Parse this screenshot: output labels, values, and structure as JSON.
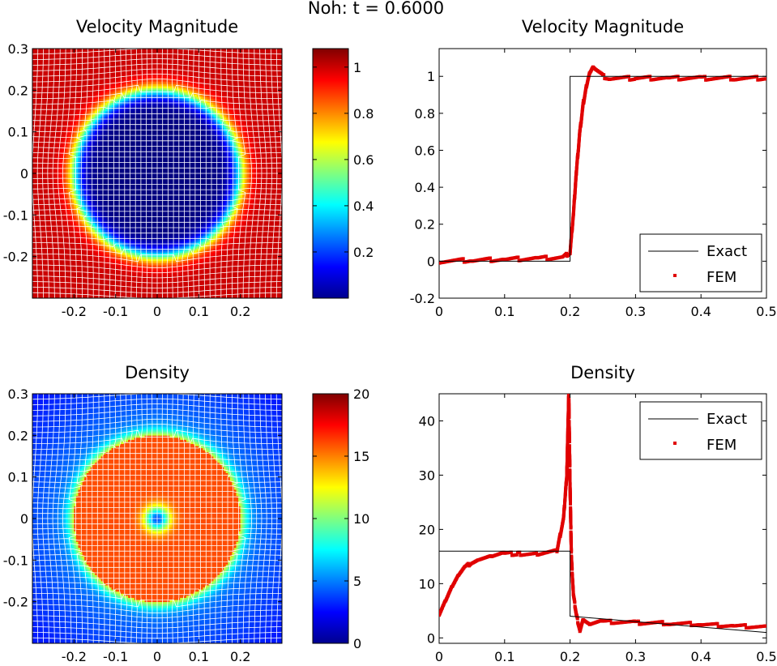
{
  "suptitle": "Noh: t = 0.6000",
  "maps": [
    {
      "title": "Velocity Magnitude",
      "xticks": [
        "-0.2",
        "-0.1",
        "0",
        "0.1",
        "0.2"
      ],
      "yticks": [
        "0.3",
        "0.2",
        "0.1",
        "0",
        "-0.1",
        "-0.2"
      ],
      "colorbar": {
        "ticks": [
          "1",
          "0.8",
          "0.6",
          "0.4",
          "0.2"
        ],
        "values": [
          1,
          0.8,
          0.6,
          0.4,
          0.2
        ],
        "range": [
          0.0,
          1.08
        ]
      },
      "field": {
        "kind": "velocity",
        "shock_radius": 0.2,
        "inside": 0.0,
        "outside": 1.0
      }
    },
    {
      "title": "Density",
      "xticks": [
        "-0.2",
        "-0.1",
        "0",
        "0.1",
        "0.2"
      ],
      "yticks": [
        "0.3",
        "0.2",
        "0.1",
        "0",
        "-0.1",
        "-0.2"
      ],
      "colorbar": {
        "ticks": [
          "20",
          "15",
          "10",
          "5",
          "0"
        ],
        "values": [
          20,
          15,
          10,
          5,
          0
        ],
        "range": [
          0,
          20
        ]
      },
      "field": {
        "kind": "density",
        "shock_radius": 0.2,
        "inside": 16,
        "center": 4,
        "outside_at_shock": 5,
        "outside_at_edge": 3
      }
    }
  ],
  "chart_data": [
    {
      "type": "line",
      "title": "Velocity Magnitude",
      "xlabel": "",
      "ylabel": "",
      "xlim": [
        0,
        0.5
      ],
      "ylim": [
        -0.2,
        1.15
      ],
      "xticks": [
        "0",
        "0.1",
        "0.2",
        "0.3",
        "0.4",
        "0.5"
      ],
      "yticks": [
        "1",
        "0.8",
        "0.6",
        "0.4",
        "0.2",
        "0",
        "-0.2"
      ],
      "legend_position": "bottom-right",
      "series": [
        {
          "name": "Exact",
          "color": "#000000",
          "style": "line",
          "x": [
            0,
            0.2,
            0.2,
            0.5
          ],
          "y": [
            0,
            0,
            1,
            1
          ]
        },
        {
          "name": "FEM",
          "color": "#e00000",
          "style": "points",
          "x": [
            0,
            0.05,
            0.1,
            0.15,
            0.19,
            0.2,
            0.205,
            0.21,
            0.215,
            0.22,
            0.225,
            0.23,
            0.235,
            0.24,
            0.25,
            0.26,
            0.3,
            0.35,
            0.4,
            0.45,
            0.5
          ],
          "y": [
            0,
            0.005,
            0.01,
            0.015,
            0.02,
            0.05,
            0.25,
            0.5,
            0.7,
            0.85,
            0.95,
            1.02,
            1.05,
            1.03,
            1.0,
            0.99,
            0.99,
            0.99,
            0.99,
            0.99,
            0.99
          ]
        }
      ]
    },
    {
      "type": "line",
      "title": "Density",
      "xlabel": "",
      "ylabel": "",
      "xlim": [
        0,
        0.5
      ],
      "ylim": [
        -1,
        45
      ],
      "xticks": [
        "0",
        "0.1",
        "0.2",
        "0.3",
        "0.4",
        "0.5"
      ],
      "yticks": [
        "40",
        "30",
        "20",
        "10",
        "0"
      ],
      "legend_position": "top-right",
      "series": [
        {
          "name": "Exact",
          "color": "#000000",
          "style": "line",
          "x": [
            0,
            0.2,
            0.2,
            0.5
          ],
          "y": [
            16,
            16,
            4,
            1
          ]
        },
        {
          "name": "FEM",
          "color": "#e00000",
          "style": "points",
          "x": [
            0.0,
            0.01,
            0.02,
            0.03,
            0.04,
            0.05,
            0.06,
            0.08,
            0.1,
            0.12,
            0.15,
            0.18,
            0.19,
            0.195,
            0.198,
            0.2,
            0.202,
            0.205,
            0.21,
            0.215,
            0.22,
            0.23,
            0.25,
            0.3,
            0.35,
            0.4,
            0.45,
            0.5
          ],
          "y": [
            4.5,
            7,
            9.5,
            11.5,
            13,
            14,
            14.5,
            15,
            15.5,
            15.5,
            15.5,
            16,
            22,
            30,
            45,
            28,
            15,
            8,
            4,
            1.5,
            3.5,
            2.5,
            3,
            2.8,
            2.7,
            2.5,
            2.2,
            2
          ]
        }
      ]
    }
  ]
}
